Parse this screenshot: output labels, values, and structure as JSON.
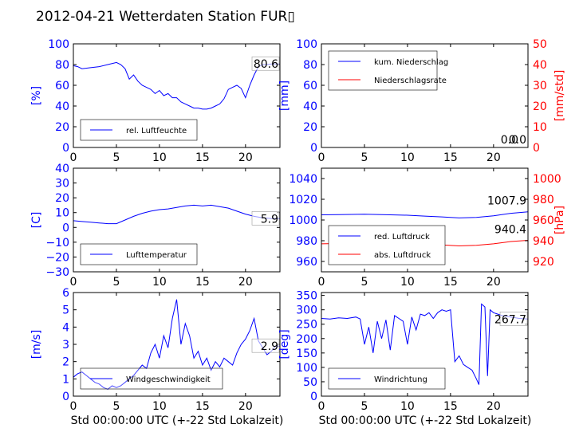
{
  "title": "2012-04-21 Wetterdaten Station FUR▯",
  "xlabel": "Std 00:00:00 UTC (+-22 Std Lokalzeit)",
  "colors": {
    "primary": "#0000ff",
    "secondary": "#ff0000",
    "axis": "#000000"
  },
  "chart_data": [
    {
      "id": "humidity",
      "type": "line",
      "ylabel": "[%]",
      "xlim": [
        0,
        24
      ],
      "ylim": [
        0,
        100
      ],
      "xticks": [
        "0",
        "5",
        "10",
        "15",
        "20"
      ],
      "yticks": [
        "0",
        "20",
        "40",
        "60",
        "80",
        "100"
      ],
      "legend": "bottom-left",
      "last_value_label": "80.6",
      "series": [
        {
          "name": "rel. Luftfeuchte",
          "color": "#0000ff",
          "x": [
            0,
            0.5,
            1,
            2,
            3,
            4,
            5,
            5.5,
            6,
            6.5,
            7,
            7.5,
            8,
            8.5,
            9,
            9.5,
            10,
            10.5,
            11,
            11.5,
            12,
            12.5,
            13,
            13.5,
            14,
            14.5,
            15,
            15.5,
            16,
            16.5,
            17,
            17.5,
            18,
            18.5,
            19,
            19.5,
            20,
            20.5,
            21,
            21.5,
            22,
            22.5,
            23,
            23.5,
            24
          ],
          "y": [
            79,
            78,
            76,
            77,
            78,
            80,
            82,
            80,
            76,
            66,
            70,
            64,
            60,
            58,
            56,
            52,
            55,
            50,
            52,
            48,
            48,
            44,
            42,
            40,
            38,
            38,
            37,
            37,
            38,
            40,
            42,
            47,
            56,
            58,
            60,
            57,
            48,
            60,
            70,
            78,
            80,
            80,
            80.6,
            80.6,
            80.6
          ]
        }
      ]
    },
    {
      "id": "precip",
      "type": "line",
      "ylabel": "[mm]",
      "ylabel_right": "[mm/std]",
      "xlim": [
        0,
        24
      ],
      "ylim": [
        0,
        100
      ],
      "ylim_right": [
        0,
        50
      ],
      "xticks": [
        "0",
        "5",
        "10",
        "15",
        "20"
      ],
      "yticks": [
        "0",
        "20",
        "40",
        "60",
        "80",
        "100"
      ],
      "yticks_right": [
        "0",
        "10",
        "20",
        "30",
        "40",
        "50"
      ],
      "legend": "top-left",
      "last_value_labels": [
        "0.0",
        "0.0"
      ],
      "series": [
        {
          "name": "kum. Niederschlag",
          "color": "#0000ff",
          "x": [
            0,
            24
          ],
          "y": [
            0,
            0
          ]
        },
        {
          "name": "Niederschlagsrate",
          "color": "#ff0000",
          "x": [
            0,
            24
          ],
          "y": [
            0,
            0
          ]
        }
      ]
    },
    {
      "id": "temperature",
      "type": "line",
      "ylabel": "[C]",
      "xlim": [
        0,
        24
      ],
      "ylim": [
        -30,
        40
      ],
      "xticks": [
        "0",
        "5",
        "10",
        "15",
        "20"
      ],
      "yticks": [
        "−30",
        "−20",
        "−10",
        "0",
        "10",
        "20",
        "30",
        "40"
      ],
      "legend": "bottom-left",
      "last_value_label": "5.9",
      "series": [
        {
          "name": "Lufttemperatur",
          "color": "#0000ff",
          "x": [
            0,
            1,
            2,
            3,
            4,
            5,
            6,
            7,
            8,
            9,
            10,
            11,
            12,
            13,
            14,
            15,
            16,
            17,
            18,
            19,
            20,
            21,
            22,
            23,
            24
          ],
          "y": [
            4.5,
            4,
            3.5,
            3,
            2.5,
            2.5,
            5,
            7.5,
            9.5,
            11,
            12,
            12.5,
            13.5,
            14.5,
            15,
            14.5,
            15,
            14,
            13,
            11,
            9,
            7.5,
            6.5,
            6,
            5.9
          ]
        }
      ]
    },
    {
      "id": "pressure",
      "type": "line",
      "ylabel_right": "[hPa]",
      "xlim": [
        0,
        24
      ],
      "ylim": [
        950,
        1050
      ],
      "ylim_right": [
        910,
        1010
      ],
      "xticks": [
        "0",
        "5",
        "10",
        "15",
        "20"
      ],
      "yticks": [
        "960",
        "980",
        "1000",
        "1020",
        "1040"
      ],
      "yticks_right": [
        "920",
        "940",
        "960",
        "980",
        "1000"
      ],
      "legend": "bottom-left",
      "last_value_labels": [
        "1007.9",
        "940.4"
      ],
      "series": [
        {
          "name": "red. Luftdruck",
          "color": "#0000ff",
          "x": [
            0,
            2,
            5,
            8,
            10,
            12,
            14,
            16,
            18,
            20,
            22,
            24
          ],
          "y": [
            1005,
            1005.2,
            1005.6,
            1005,
            1004.6,
            1003.8,
            1003,
            1002,
            1002.5,
            1004,
            1006.5,
            1007.9
          ]
        },
        {
          "name": "abs. Luftdruck",
          "color": "#ff0000",
          "x": [
            0,
            2,
            5,
            8,
            10,
            12,
            14,
            16,
            18,
            20,
            22,
            24
          ],
          "y": [
            937,
            937.3,
            937.8,
            937.5,
            937,
            936.6,
            936,
            935,
            935.6,
            937,
            939.2,
            940.4
          ]
        }
      ]
    },
    {
      "id": "wind_speed",
      "type": "line",
      "ylabel": "[m/s]",
      "xlim": [
        0,
        24
      ],
      "ylim": [
        0,
        6
      ],
      "xticks": [
        "0",
        "5",
        "10",
        "15",
        "20"
      ],
      "yticks": [
        "0",
        "1",
        "2",
        "3",
        "4",
        "5",
        "6"
      ],
      "legend": "bottom-left",
      "last_value_label": "2.9",
      "series": [
        {
          "name": "Windgeschwindigkeit",
          "color": "#0000ff",
          "x": [
            0,
            0.5,
            1,
            1.5,
            2,
            2.5,
            3,
            3.5,
            4,
            4.5,
            5,
            5.5,
            6,
            6.5,
            7,
            7.5,
            8,
            8.5,
            9,
            9.5,
            10,
            10.5,
            11,
            11.5,
            12,
            12.5,
            13,
            13.5,
            14,
            14.5,
            15,
            15.5,
            16,
            16.5,
            17,
            17.5,
            18,
            18.5,
            19,
            19.5,
            20,
            20.5,
            21,
            21.5,
            22,
            22.5,
            23,
            23.5,
            24
          ],
          "y": [
            1.1,
            1.3,
            1.4,
            1.2,
            1.0,
            0.8,
            0.7,
            0.5,
            0.4,
            0.6,
            0.5,
            0.6,
            0.8,
            1.0,
            1.2,
            1.5,
            1.8,
            1.6,
            2.5,
            3.0,
            2.2,
            3.5,
            2.8,
            4.5,
            5.6,
            3.0,
            4.2,
            3.5,
            2.2,
            2.6,
            1.8,
            2.2,
            1.5,
            2.0,
            1.7,
            2.2,
            2.0,
            1.8,
            2.5,
            3.0,
            3.3,
            3.8,
            4.5,
            3.2,
            2.8,
            2.4,
            2.6,
            2.9,
            2.9
          ]
        }
      ]
    },
    {
      "id": "wind_dir",
      "type": "line",
      "ylabel": "[deg]",
      "xlim": [
        0,
        24
      ],
      "ylim": [
        0,
        360
      ],
      "xticks": [
        "0",
        "5",
        "10",
        "15",
        "20"
      ],
      "yticks": [
        "0",
        "50",
        "100",
        "150",
        "200",
        "250",
        "300",
        "350"
      ],
      "legend": "bottom-left",
      "last_value_label": "267.7",
      "series": [
        {
          "name": "Windrichtung",
          "color": "#0000ff",
          "x": [
            0,
            1,
            2,
            3,
            4,
            4.5,
            5,
            5.5,
            6,
            6.5,
            7,
            7.5,
            8,
            8.5,
            9,
            9.5,
            10,
            10.5,
            11,
            11.5,
            12,
            12.5,
            13,
            13.5,
            14,
            14.5,
            15,
            15.5,
            16,
            16.5,
            17,
            17.5,
            18,
            18.3,
            18.6,
            19,
            19.3,
            19.6,
            20,
            20.5,
            21,
            22,
            23,
            24
          ],
          "y": [
            270,
            268,
            272,
            270,
            275,
            268,
            180,
            240,
            150,
            260,
            200,
            265,
            160,
            280,
            270,
            260,
            180,
            275,
            230,
            285,
            280,
            290,
            270,
            290,
            300,
            295,
            300,
            120,
            140,
            110,
            100,
            90,
            60,
            40,
            320,
            310,
            70,
            300,
            290,
            285,
            280,
            275,
            270,
            267.7
          ]
        }
      ]
    }
  ]
}
